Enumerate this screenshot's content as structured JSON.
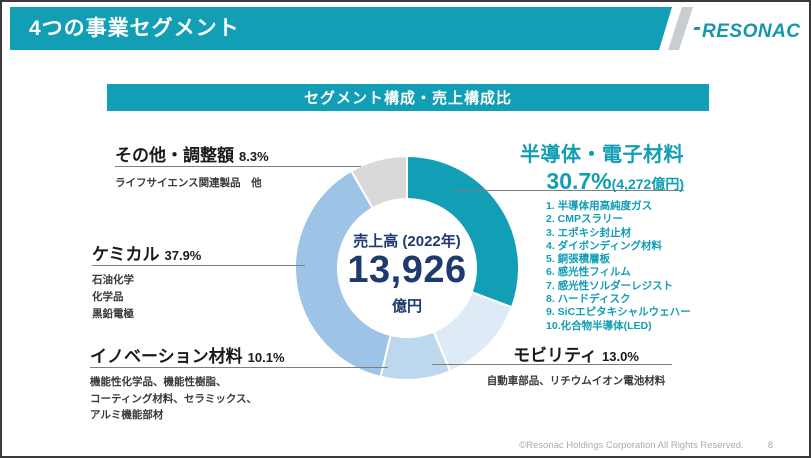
{
  "header": {
    "title": "4つの事業セグメント",
    "logo_text": "RESONAC"
  },
  "banner": {
    "text": "セグメント構成・売上構成比"
  },
  "chart_data": {
    "type": "pie",
    "subtype": "donut",
    "title": "セグメント構成・売上構成比",
    "direction": "clockwise",
    "start_angle_deg": 0,
    "center": {
      "caption": "売上高 (2022年)",
      "value": "13,926",
      "unit": "億円"
    },
    "segments": [
      {
        "label": "半導体・電子材料",
        "value_pct": 30.7,
        "color": "#129EB4"
      },
      {
        "label": "モビリティ",
        "value_pct": 13.0,
        "color": "#DEEBF7"
      },
      {
        "label": "イノベーション材料",
        "value_pct": 10.1,
        "color": "#BDD7EE"
      },
      {
        "label": "ケミカル",
        "value_pct": 37.9,
        "color": "#9DC3E6"
      },
      {
        "label": "その他・調整額",
        "value_pct": 8.3,
        "color": "#D9D9D9"
      }
    ]
  },
  "labels": {
    "semiconductor": {
      "title": "半導体・電子材料",
      "pct": "30.7%",
      "amount": "(4,272億円)",
      "products": [
        "1. 半導体用高純度ガス",
        "2. CMPスラリー",
        "3. エポキシ封止材",
        "4. ダイボンディング材料",
        "5. 銅張積層板",
        "6. 感光性フィルム",
        "7. 感光性ソルダーレジスト",
        "8. ハードディスク",
        "9. SiCエピタキシャルウェハー",
        "10.化合物半導体(LED)"
      ]
    },
    "mobility": {
      "title": "モビリティ",
      "pct": "13.0%",
      "products_line": "自動車部品、リチウムイオン電池材料"
    },
    "innovation": {
      "title": "イノベーション材料",
      "pct": "10.1%",
      "products_lines": [
        "機能性化学品、機能性樹脂、",
        "コーティング材料、セラミックス、",
        "アルミ機能部材"
      ]
    },
    "chemical": {
      "title": "ケミカル",
      "pct": "37.9%",
      "products_lines": [
        "石油化学",
        "化学品",
        "黒鉛電極"
      ]
    },
    "other": {
      "title": "その他・調整額",
      "pct": "8.3%",
      "products_line": "ライフサイエンス関連製品　他"
    }
  },
  "footer": {
    "copyright": "©Resonac Holdings Corporation  All Rights Reserved.",
    "page_number": "8"
  },
  "colors": {
    "brand_teal": "#129EB4",
    "navy": "#1E3A6E",
    "label_dark": "#1a1a1a",
    "leader_gray": "#7f7f7f",
    "stripe_gray": "#C9CDD2",
    "footer_gray": "#ABABAB"
  }
}
